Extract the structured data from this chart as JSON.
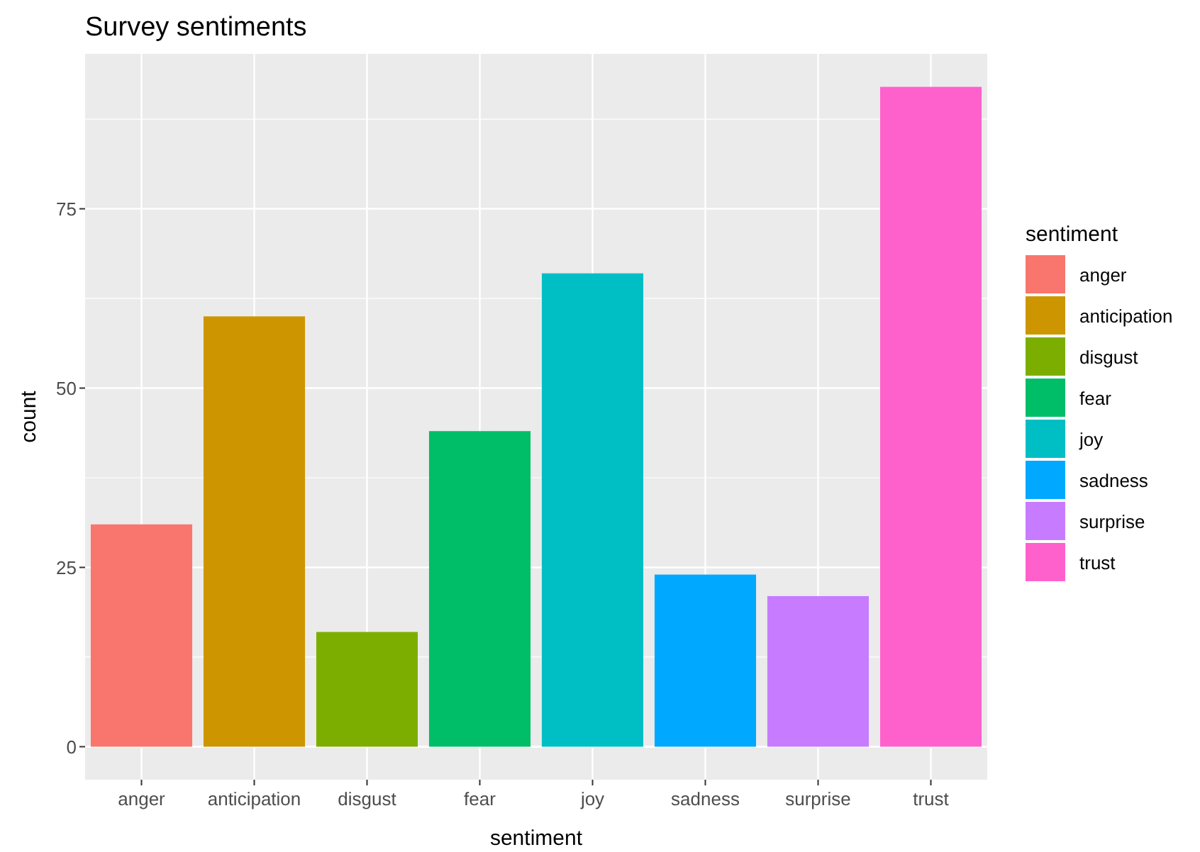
{
  "chart_data": {
    "type": "bar",
    "title": "Survey sentiments",
    "xlabel": "sentiment",
    "ylabel": "count",
    "legend_title": "sentiment",
    "categories": [
      "anger",
      "anticipation",
      "disgust",
      "fear",
      "joy",
      "sadness",
      "surprise",
      "trust"
    ],
    "series": [
      {
        "name": "anger",
        "color": "#f8766d",
        "values": [
          31,
          null,
          null,
          null,
          null,
          null,
          null,
          null
        ]
      },
      {
        "name": "anticipation",
        "color": "#cd9600",
        "values": [
          null,
          60,
          null,
          null,
          null,
          null,
          null,
          null
        ]
      },
      {
        "name": "disgust",
        "color": "#7cae00",
        "values": [
          null,
          null,
          16,
          null,
          null,
          null,
          null,
          null
        ]
      },
      {
        "name": "fear",
        "color": "#00be67",
        "values": [
          null,
          null,
          null,
          44,
          null,
          null,
          null,
          null
        ]
      },
      {
        "name": "joy",
        "color": "#00bfc4",
        "values": [
          null,
          null,
          null,
          null,
          66,
          null,
          null,
          null
        ]
      },
      {
        "name": "sadness",
        "color": "#00a9ff",
        "values": [
          null,
          null,
          null,
          null,
          null,
          24,
          null,
          null
        ]
      },
      {
        "name": "surprise",
        "color": "#c77cff",
        "values": [
          null,
          null,
          null,
          null,
          null,
          null,
          21,
          null
        ]
      },
      {
        "name": "trust",
        "color": "#ff61cc",
        "values": [
          null,
          null,
          null,
          null,
          null,
          null,
          null,
          92
        ]
      }
    ],
    "ylim": [
      -4.6,
      96.6
    ],
    "yticks": [
      0,
      25,
      50,
      75
    ],
    "grid": true,
    "legend": "right"
  }
}
